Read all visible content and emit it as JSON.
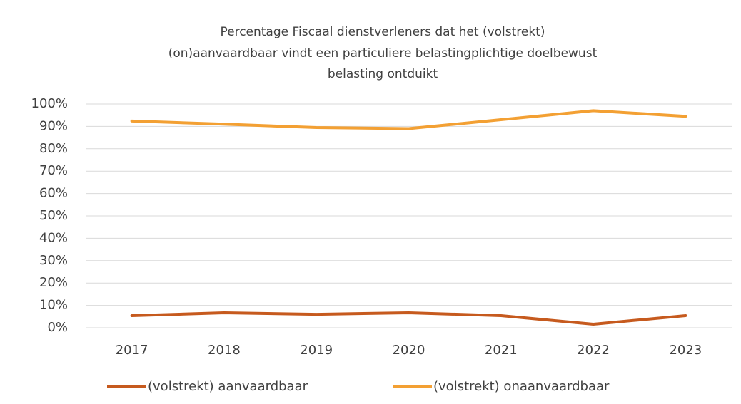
{
  "chart_data": {
    "type": "line",
    "title": [
      "Percentage Fiscaal dienstverleners dat het (volstrekt)",
      "(on)aanvaardbaar vindt een particuliere belastingplichtige doelbewust",
      "belasting ontduikt"
    ],
    "categories": [
      "2017",
      "2018",
      "2019",
      "2020",
      "2021",
      "2022",
      "2023"
    ],
    "series": [
      {
        "name": "(volstrekt) aanvaardbaar",
        "color": "#c65a1e",
        "values": [
          5.4,
          6.7,
          6,
          6.7,
          5.4,
          1.6,
          5.4
        ]
      },
      {
        "name": "(volstrekt) onaanvaardbaar",
        "color": "#f3a033",
        "values": [
          92.4,
          91,
          89.5,
          89,
          93,
          97,
          94.5
        ]
      }
    ],
    "ylim": [
      0,
      100
    ],
    "yticks": [
      {
        "value": 0,
        "label": "0%"
      },
      {
        "value": 10,
        "label": "10%"
      },
      {
        "value": 20,
        "label": "20%"
      },
      {
        "value": 30,
        "label": "30%"
      },
      {
        "value": 40,
        "label": "40%"
      },
      {
        "value": 50,
        "label": "50%"
      },
      {
        "value": 60,
        "label": "60%"
      },
      {
        "value": 70,
        "label": "70%"
      },
      {
        "value": 80,
        "label": "80%"
      },
      {
        "value": 90,
        "label": "90%"
      },
      {
        "value": 100,
        "label": "100%"
      }
    ],
    "grid": true,
    "legend": "bottom"
  }
}
